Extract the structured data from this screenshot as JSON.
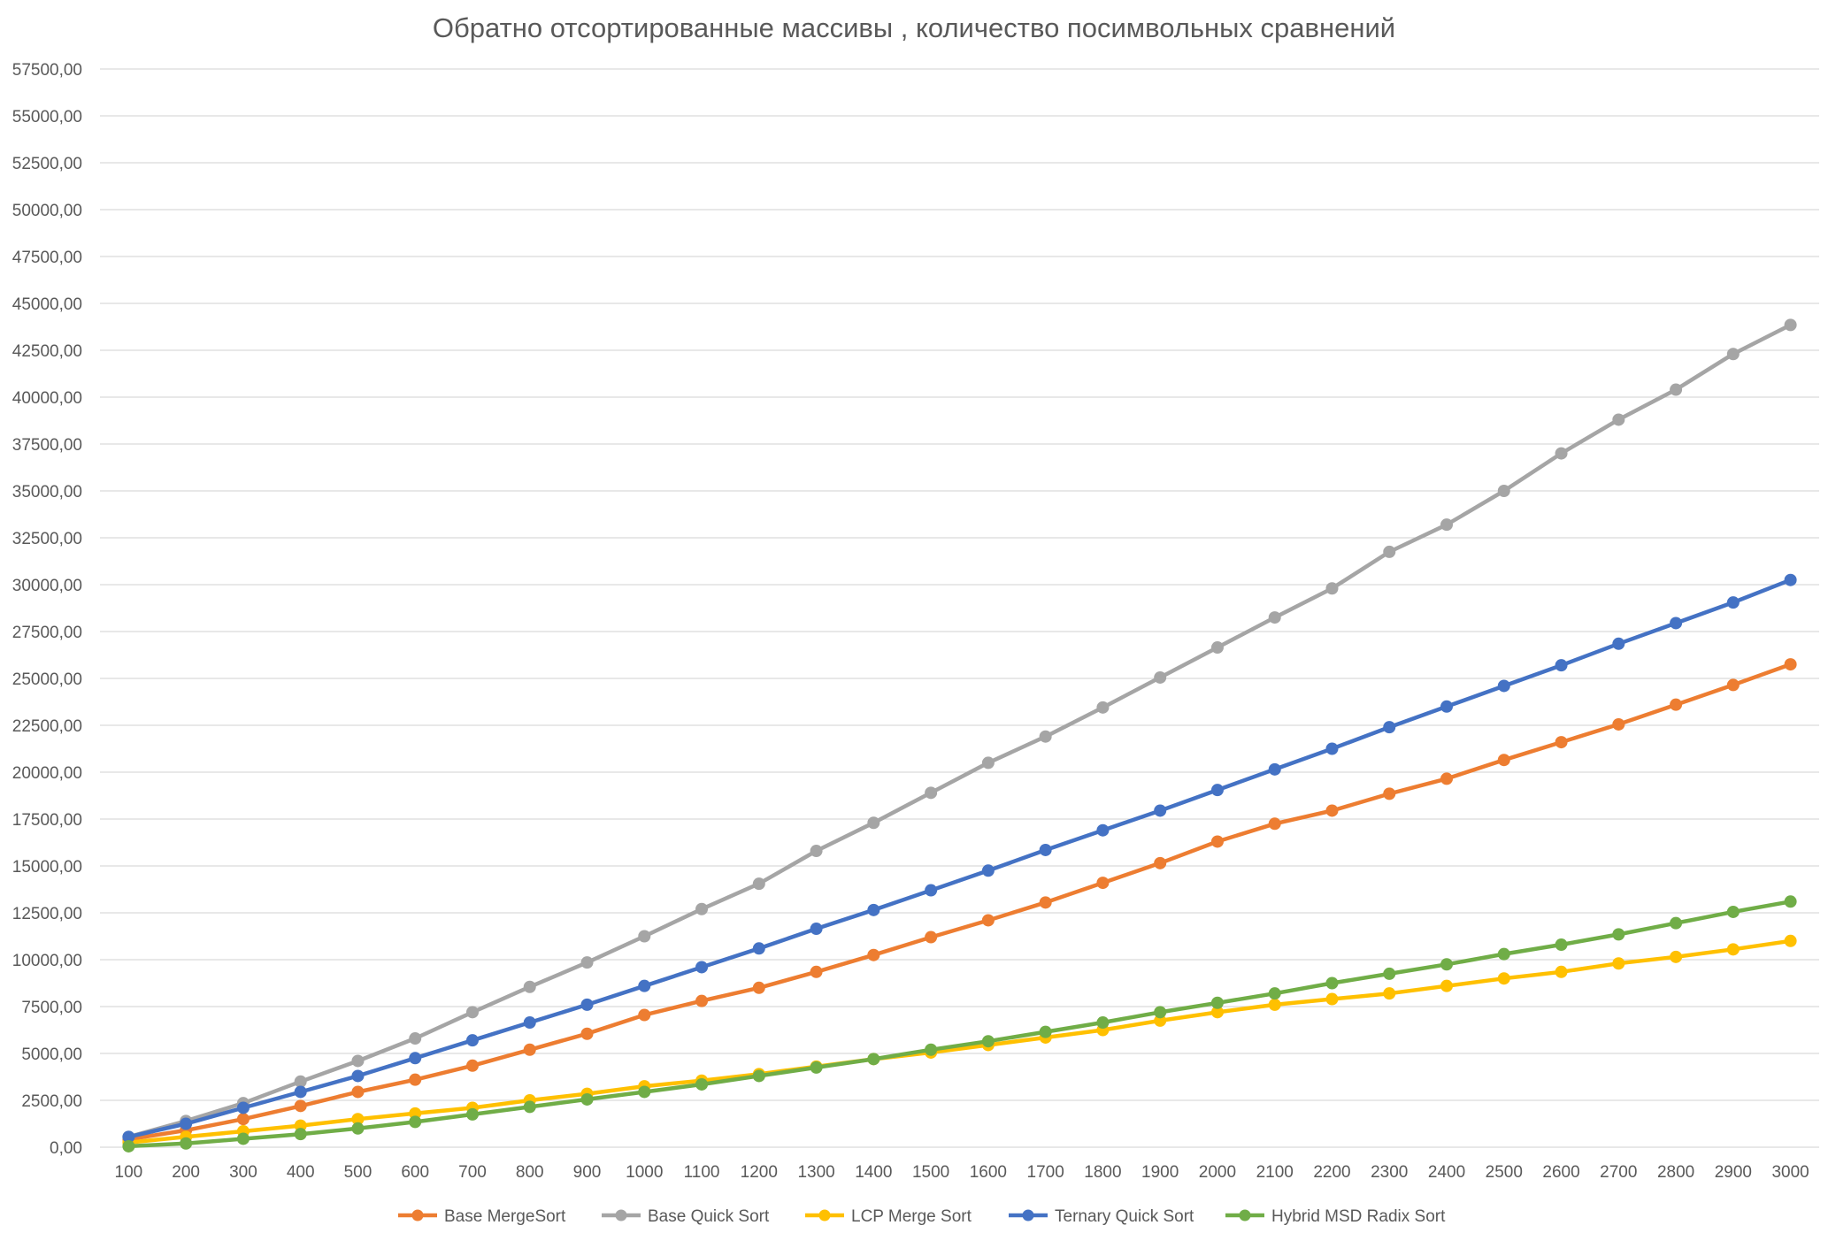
{
  "chart_data": {
    "type": "line",
    "title": "Обратно отсортированные массивы , количество посимвольных сравнений",
    "xlabel": "",
    "ylabel": "",
    "ylim": [
      0,
      57500
    ],
    "grid": true,
    "legend_position": "bottom",
    "x": [
      100,
      200,
      300,
      400,
      500,
      600,
      700,
      800,
      900,
      1000,
      1100,
      1200,
      1300,
      1400,
      1500,
      1600,
      1700,
      1800,
      1900,
      2000,
      2100,
      2200,
      2300,
      2400,
      2500,
      2600,
      2700,
      2800,
      2900,
      3000
    ],
    "x_tick_labels": [
      "100",
      "200",
      "300",
      "400",
      "500",
      "600",
      "700",
      "800",
      "900",
      "1000",
      "1100",
      "1200",
      "1300",
      "1400",
      "1500",
      "1600",
      "1700",
      "1800",
      "1900",
      "2000",
      "2100",
      "2200",
      "2300",
      "2400",
      "2500",
      "2600",
      "2700",
      "2800",
      "2900",
      "3000"
    ],
    "y_ticks": [
      0,
      2500,
      5000,
      7500,
      10000,
      12500,
      15000,
      17500,
      20000,
      22500,
      25000,
      27500,
      30000,
      32500,
      35000,
      37500,
      40000,
      42500,
      45000,
      47500,
      50000,
      52500,
      55000,
      57500
    ],
    "y_tick_labels": [
      "0,00",
      "2500,00",
      "5000,00",
      "7500,00",
      "10000,00",
      "12500,00",
      "15000,00",
      "17500,00",
      "20000,00",
      "22500,00",
      "25000,00",
      "27500,00",
      "30000,00",
      "32500,00",
      "35000,00",
      "37500,00",
      "40000,00",
      "42500,00",
      "45000,00",
      "47500,00",
      "50000,00",
      "52500,00",
      "55000,00",
      "57500,00"
    ],
    "series": [
      {
        "name": "Base MergeSort",
        "color": "#ED7D31",
        "values": [
          420,
          900,
          1500,
          2200,
          2950,
          3600,
          4350,
          5200,
          6050,
          7050,
          7800,
          8500,
          9350,
          10250,
          11200,
          12100,
          13050,
          14100,
          15150,
          16300,
          17250,
          17950,
          18850,
          19650,
          20650,
          21600,
          22550,
          23600,
          24650,
          25750
        ]
      },
      {
        "name": "Base Quick Sort",
        "color": "#A5A5A5",
        "values": [
          550,
          1400,
          2350,
          3500,
          4600,
          5800,
          7200,
          8550,
          9850,
          11250,
          12700,
          14050,
          15800,
          17300,
          18900,
          20500,
          21900,
          23450,
          25050,
          26650,
          28250,
          29800,
          31750,
          33200,
          35000,
          37000,
          38800,
          40400,
          42300,
          43850
        ]
      },
      {
        "name": "LCP Merge Sort",
        "color": "#FFC000",
        "values": [
          250,
          550,
          850,
          1150,
          1500,
          1800,
          2100,
          2500,
          2850,
          3250,
          3550,
          3900,
          4300,
          4700,
          5050,
          5450,
          5850,
          6250,
          6750,
          7200,
          7600,
          7900,
          8200,
          8600,
          9000,
          9350,
          9800,
          10150,
          10550,
          11000
        ]
      },
      {
        "name": "Ternary Quick Sort",
        "color": "#4472C4",
        "values": [
          550,
          1250,
          2100,
          2950,
          3800,
          4750,
          5700,
          6650,
          7600,
          8600,
          9600,
          10600,
          11650,
          12650,
          13700,
          14750,
          15850,
          16900,
          17950,
          19050,
          20150,
          21250,
          22400,
          23500,
          24600,
          25700,
          26850,
          27950,
          29050,
          30250
        ]
      },
      {
        "name": "Hybrid MSD Radix Sort",
        "color": "#70AD47",
        "values": [
          50,
          200,
          450,
          700,
          1000,
          1350,
          1750,
          2150,
          2550,
          2950,
          3350,
          3800,
          4250,
          4700,
          5200,
          5650,
          6150,
          6650,
          7200,
          7700,
          8200,
          8750,
          9250,
          9750,
          10300,
          10800,
          11350,
          11950,
          12550,
          13100
        ]
      }
    ]
  }
}
